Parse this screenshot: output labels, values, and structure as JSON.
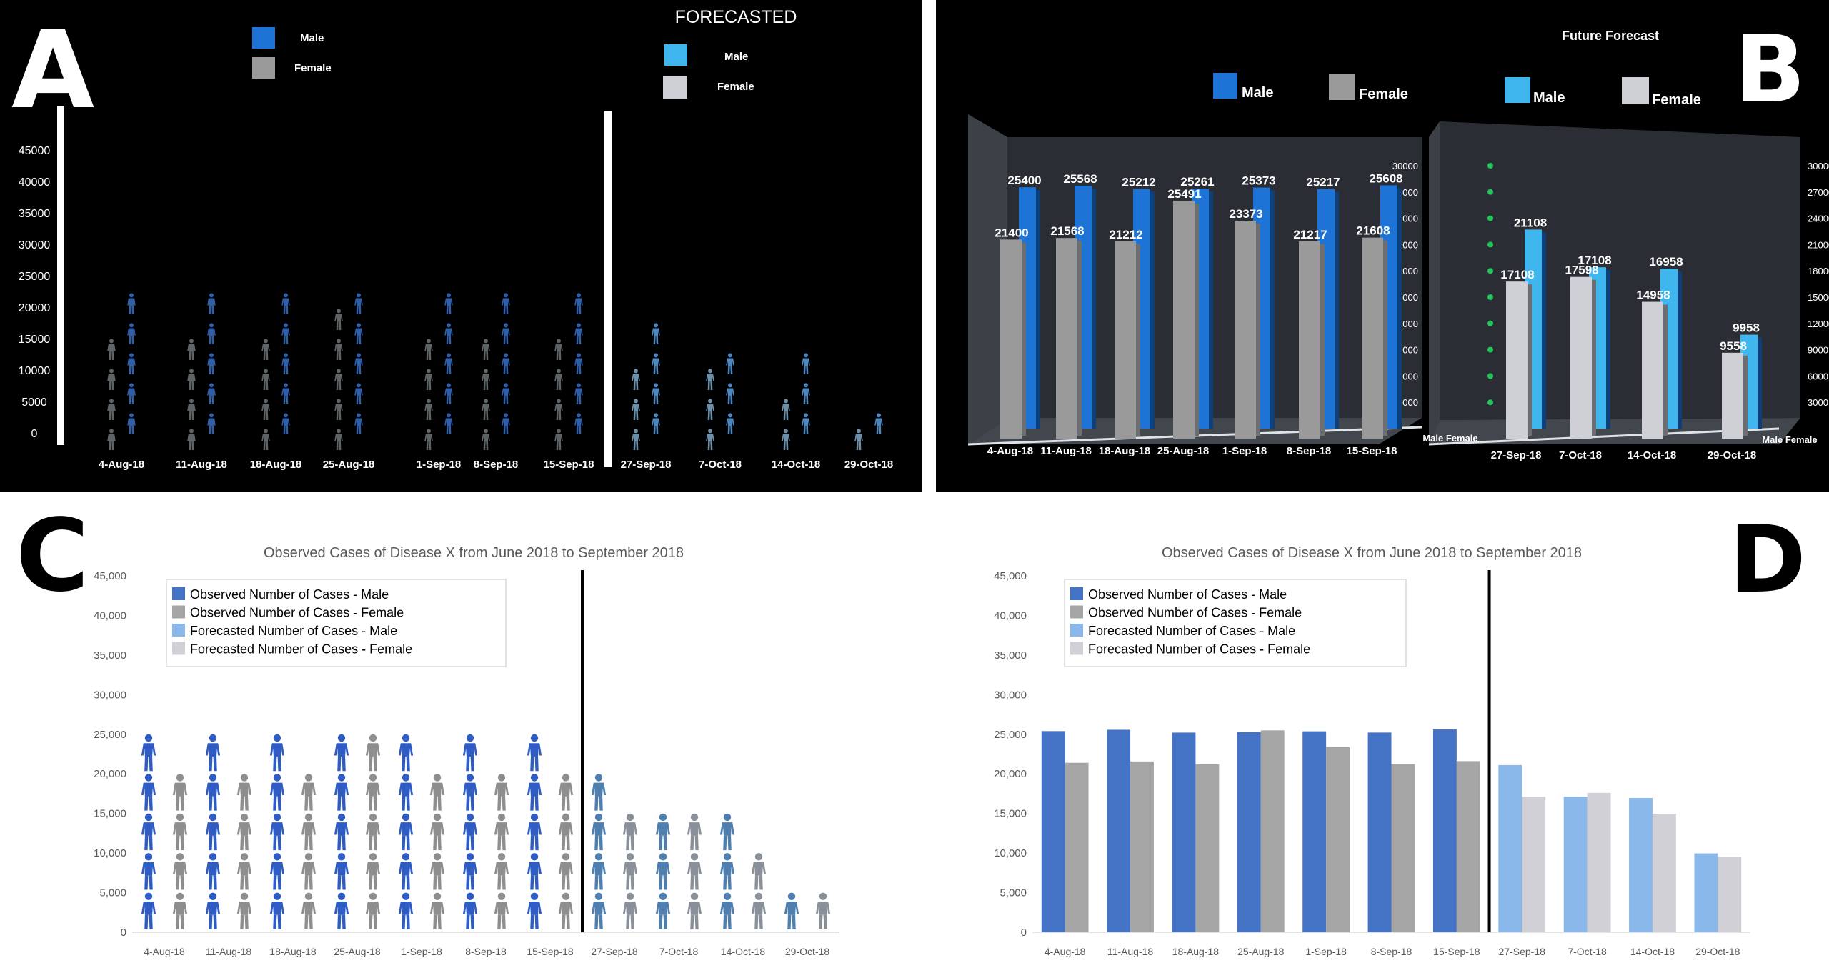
{
  "panels": {
    "A": {
      "letter": "A",
      "forecast_title": "FORECASTED",
      "legend_observed": [
        "Male",
        "Female"
      ],
      "legend_forecast": [
        "Male",
        "Female"
      ]
    },
    "B": {
      "letter": "B",
      "forecast_title": "Future Forecast",
      "legend_observed": [
        "Male",
        "Female"
      ],
      "legend_forecast": [
        "Male",
        "Female"
      ],
      "axis_end_labels": [
        "Male",
        "Female"
      ]
    },
    "C": {
      "letter": "C",
      "title": "Observed Cases of Disease X  from June 2018 to September 2018"
    },
    "D": {
      "letter": "D",
      "title": "Observed Cases of Disease X  from June 2018 to September 2018"
    }
  },
  "legend_labels": [
    "Observed Number of Cases - Male",
    "Observed Number of Cases - Female",
    "Forecasted Number of Cases - Male",
    "Forecasted Number of Cases - Female"
  ],
  "colors": {
    "observed_male": "#4472c4",
    "observed_female": "#a5a5a5",
    "forecast_male": "#8ab8ea",
    "forecast_female": "#d0d0d6",
    "vr_male": "#1e74d6",
    "vr_female": "#9a9a9a",
    "vr_forecast_male": "#3fb6ee",
    "vr_forecast_female": "#cfcfd6"
  },
  "chart_data": [
    {
      "panel": "A",
      "type": "bar",
      "categories": [
        "4-Aug-18",
        "11-Aug-18",
        "18-Aug-18",
        "25-Aug-18",
        "1-Sep-18",
        "8-Sep-18",
        "15-Sep-18",
        "27-Sep-18",
        "7-Oct-18",
        "14-Oct-18",
        "29-Oct-18"
      ],
      "series": [
        {
          "name": "Male",
          "values": [
            25400,
            25568,
            25212,
            25261,
            25373,
            25217,
            25608,
            21108,
            17108,
            16958,
            9958
          ]
        },
        {
          "name": "Female",
          "values": [
            21400,
            21568,
            21212,
            25491,
            23373,
            21217,
            21608,
            17108,
            17598,
            14958,
            9558
          ]
        }
      ],
      "y_tick_labels": [
        "0",
        "5000",
        "10000",
        "15000",
        "20000",
        "25000",
        "30000",
        "35000",
        "40000",
        "45000"
      ],
      "ylim": [
        0,
        45000
      ],
      "observed_count": 7
    },
    {
      "panel": "B",
      "type": "bar",
      "categories": [
        "4-Aug-18",
        "11-Aug-18",
        "18-Aug-18",
        "25-Aug-18",
        "1-Sep-18",
        "8-Sep-18",
        "15-Sep-18",
        "27-Sep-18",
        "7-Oct-18",
        "14-Oct-18",
        "29-Oct-18"
      ],
      "series": [
        {
          "name": "Male",
          "values": [
            25400,
            25568,
            25212,
            25261,
            25373,
            25217,
            25608,
            21108,
            17108,
            16958,
            9958
          ]
        },
        {
          "name": "Female",
          "values": [
            21400,
            21568,
            21212,
            25491,
            23373,
            21217,
            21608,
            17108,
            17598,
            14958,
            9558
          ]
        }
      ],
      "data_labels_male": [
        "25400",
        "25568",
        "25212",
        "25261",
        "25373",
        "25217",
        "25608",
        "21108",
        "17108",
        "16958",
        "9958"
      ],
      "data_labels_female": [
        "21400",
        "21568",
        "21212",
        "25491",
        "23373",
        "21217",
        "21608",
        "17108",
        "17598",
        "14958",
        "9558"
      ],
      "y_tick_labels": [
        "3000",
        "6000",
        "9000",
        "12000",
        "15000",
        "18000",
        "21000",
        "24000",
        "27000",
        "30000"
      ],
      "ylim": [
        0,
        30000
      ],
      "observed_count": 7
    },
    {
      "panel": "C",
      "type": "bar",
      "title": "Observed Cases of Disease X  from June 2018 to September 2018",
      "categories": [
        "4-Aug-18",
        "11-Aug-18",
        "18-Aug-18",
        "25-Aug-18",
        "1-Sep-18",
        "8-Sep-18",
        "15-Sep-18",
        "27-Sep-18",
        "7-Oct-18",
        "14-Oct-18",
        "29-Oct-18"
      ],
      "series": [
        {
          "name": "Observed Number of Cases - Male",
          "values": [
            25400,
            25568,
            25212,
            25261,
            25373,
            25217,
            25608,
            21108,
            17108,
            16958,
            9958
          ]
        },
        {
          "name": "Observed Number of Cases - Female",
          "values": [
            21400,
            21568,
            21212,
            25491,
            23373,
            21217,
            21608,
            17108,
            17598,
            14958,
            9558
          ]
        }
      ],
      "y_tick_labels": [
        "0",
        "5,000",
        "10,000",
        "15,000",
        "20,000",
        "25,000",
        "30,000",
        "35,000",
        "40,000",
        "45,000"
      ],
      "ylim": [
        0,
        45000
      ],
      "observed_count": 7
    },
    {
      "panel": "D",
      "type": "bar",
      "title": "Observed Cases of Disease X  from June 2018 to September 2018",
      "categories": [
        "4-Aug-18",
        "11-Aug-18",
        "18-Aug-18",
        "25-Aug-18",
        "1-Sep-18",
        "8-Sep-18",
        "15-Sep-18",
        "27-Sep-18",
        "7-Oct-18",
        "14-Oct-18",
        "29-Oct-18"
      ],
      "series": [
        {
          "name": "Observed Number of Cases - Male",
          "values": [
            25400,
            25568,
            25212,
            25261,
            25373,
            25217,
            25608,
            21108,
            17108,
            16958,
            9958
          ]
        },
        {
          "name": "Observed Number of Cases - Female",
          "values": [
            21400,
            21568,
            21212,
            25491,
            23373,
            21217,
            21608,
            17108,
            17598,
            14958,
            9558
          ]
        }
      ],
      "y_tick_labels": [
        "0",
        "5,000",
        "10,000",
        "15,000",
        "20,000",
        "25,000",
        "30,000",
        "35,000",
        "40,000",
        "45,000"
      ],
      "ylim": [
        0,
        45000
      ],
      "observed_count": 7
    }
  ]
}
